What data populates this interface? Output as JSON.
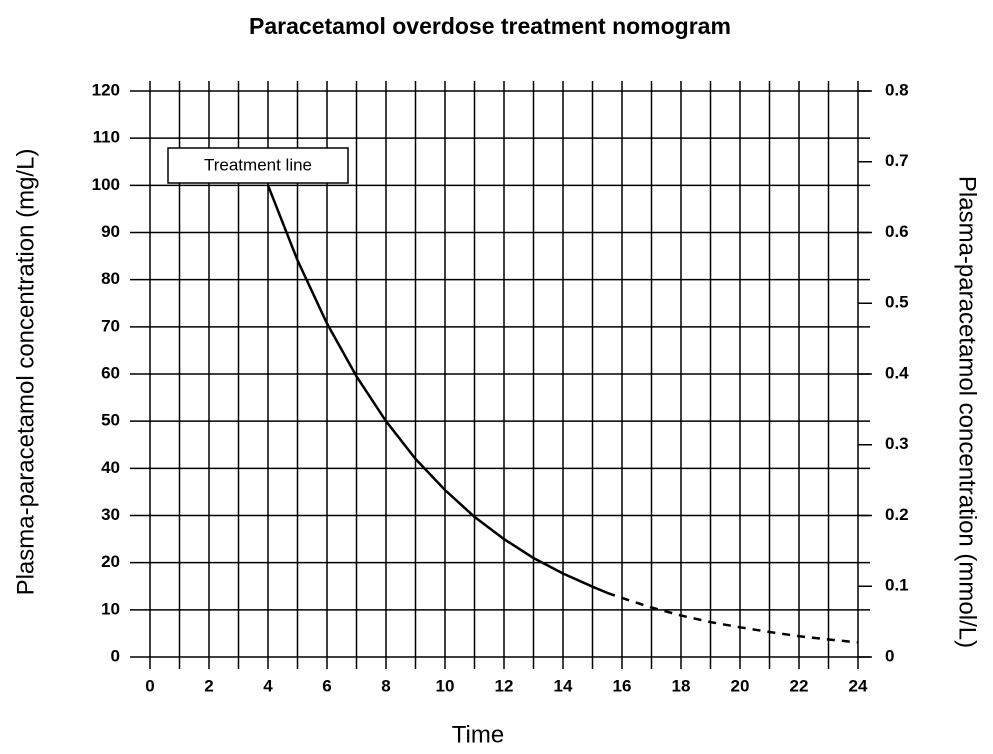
{
  "chart_data": {
    "type": "line",
    "title": "Paracetamol overdose treatment nomogram",
    "xlabel": "Time",
    "ylabel": "Plasma-paracetamol concentration (mg/L)",
    "y2label": "Plasma-paracetamol concentration (mmol/L)",
    "annotation": "Treatment line",
    "xlim": [
      0,
      24
    ],
    "xticks": [
      0,
      2,
      4,
      6,
      8,
      10,
      12,
      14,
      16,
      18,
      20,
      22,
      24
    ],
    "xminor": [
      1,
      3,
      5,
      7,
      9,
      11,
      13,
      15,
      17,
      19,
      21,
      23
    ],
    "ylim": [
      0,
      120
    ],
    "yticks": [
      0,
      10,
      20,
      30,
      40,
      50,
      60,
      70,
      80,
      90,
      100,
      110,
      120
    ],
    "y2lim": [
      0,
      0.8
    ],
    "y2ticks": [
      0,
      0.1,
      0.2,
      0.3,
      0.4,
      0.5,
      0.6,
      0.7,
      0.8
    ],
    "grid": true,
    "series": [
      {
        "color": "#000000",
        "style": "solid",
        "x": [
          4,
          5,
          6,
          7,
          8,
          9,
          10,
          11,
          12,
          13,
          14,
          15,
          15.5
        ],
        "values": [
          100,
          84.1,
          70.7,
          59.5,
          50,
          42,
          35.4,
          29.7,
          25,
          21,
          17.7,
          14.9,
          13.6
        ]
      },
      {
        "color": "#000000",
        "style": "dashed",
        "x": [
          15.5,
          16,
          17,
          18,
          19,
          20,
          21,
          22,
          23,
          24
        ],
        "values": [
          13.6,
          12.5,
          10.5,
          8.8,
          7.4,
          6.3,
          5.3,
          4.4,
          3.7,
          3.1
        ]
      }
    ]
  }
}
